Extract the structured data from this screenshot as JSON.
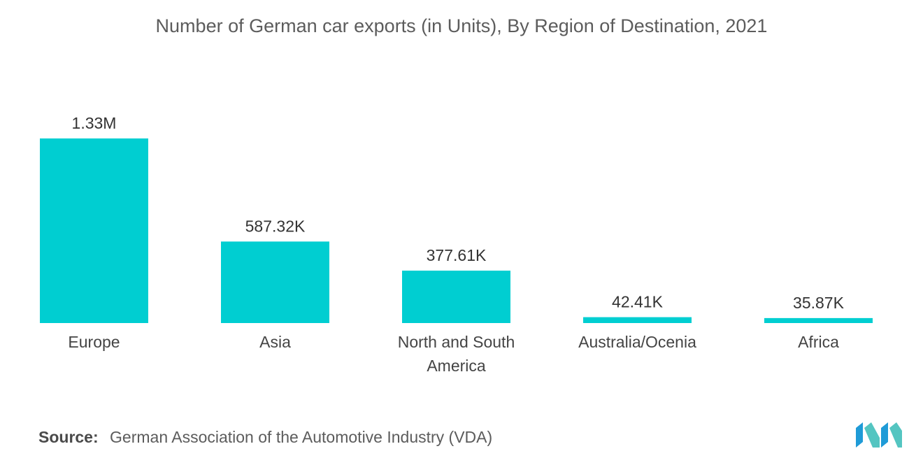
{
  "chart_data": {
    "type": "bar",
    "title": "Number of German car exports (in Units), By Region of Destination, 2021",
    "categories": [
      [
        "Europe"
      ],
      [
        "Asia"
      ],
      [
        "North and South",
        "America"
      ],
      [
        "Australia/Ocenia"
      ],
      [
        "Africa"
      ]
    ],
    "values": [
      1330000,
      587320,
      377610,
      42410,
      35870
    ],
    "value_labels": [
      "1.33M",
      "587.32K",
      "377.61K",
      "42.41K",
      "35.87K"
    ],
    "xlabel": "",
    "ylabel": "",
    "ylim": [
      0,
      1330000
    ],
    "grid": false,
    "bar_color": "#00CED1"
  },
  "footer": {
    "source_label": "Source:",
    "source_text": "German Association of the Automotive Industry (VDA)"
  },
  "logo": {
    "icon": "mordor-intelligence-logo",
    "colors": [
      "#1F9BD7",
      "#54C5C1"
    ]
  }
}
